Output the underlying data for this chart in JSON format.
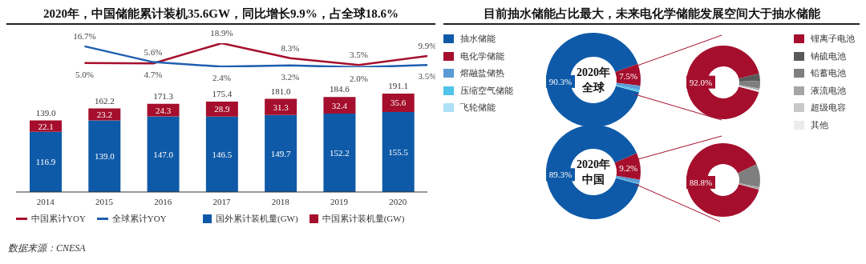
{
  "chart_data": [
    {
      "type": "line",
      "title": "2020年，中国储能累计装机35.6GW，同比增长9.9%，占全球18.6%",
      "categories": [
        null,
        null,
        null,
        null,
        null,
        null,
        null
      ],
      "tick_labels": false,
      "legend": "bottom",
      "series": [
        {
          "name": "中国累计YOY",
          "color": "#a50f2d",
          "values": [
            null,
            5.0,
            4.7,
            18.9,
            8.3,
            3.5,
            9.9
          ],
          "value_labels": [
            null,
            "5.0%",
            "4.7%",
            "18.9%",
            "8.3%",
            "3.5%",
            "9.9%"
          ]
        },
        {
          "name": "全球累计YOY",
          "color": "#1f5fb0",
          "values": [
            null,
            16.7,
            5.6,
            2.4,
            3.2,
            2.0,
            3.5
          ],
          "value_labels": [
            null,
            "16.7%",
            "5.6%",
            "2.4%",
            "3.2%",
            "2.0%",
            "3.5%"
          ]
        }
      ]
    },
    {
      "type": "bar",
      "categories": [
        "2014",
        "2015",
        "2016",
        "2017",
        "2018",
        "2019",
        "2020"
      ],
      "stacked": true,
      "legend": "bottom",
      "series": [
        {
          "name": "国外累计装机量(GW)",
          "color": "#0f5aa8",
          "values": [
            116.9,
            139.0,
            147.0,
            146.5,
            149.7,
            152.2,
            155.5
          ],
          "value_labels": [
            "116.9",
            "139.0",
            "147.0",
            "146.5",
            "149.7",
            "152.2",
            "155.5"
          ]
        },
        {
          "name": "中国累计装机量(GW)",
          "color": "#a50f2d",
          "values": [
            22.1,
            23.2,
            24.3,
            28.9,
            31.3,
            32.4,
            35.6
          ],
          "value_labels": [
            "22.1",
            "23.2",
            "24.3",
            "28.9",
            "31.3",
            "32.4",
            "35.6"
          ]
        }
      ],
      "totals": [
        "139.0",
        "162.2",
        "171.3",
        "175.4",
        "181.0",
        "184.6",
        "191.1"
      ],
      "annotations": [
        "数据来源：CNESA"
      ]
    },
    {
      "type": "donut",
      "title": "目前抽水储能占比最大，未来电化学储能发展空间大于抽水储能",
      "categories": [
        "抽水储能",
        "电化学储能",
        "熔融盐储热",
        "压缩空气储能",
        "飞轮储能"
      ],
      "values": [
        90.3,
        7.5,
        1.4,
        0.7,
        0.1
      ],
      "colors": [
        "#0f5aa8",
        "#a50f2d",
        "#5b9bd5",
        "#4fc3e8",
        "#aee0f7"
      ],
      "value_labels": [
        "90.3%",
        "7.5%",
        null,
        null,
        null
      ],
      "legend": "left",
      "annotations": [
        "2020年",
        "全球"
      ]
    },
    {
      "type": "donut",
      "categories": [
        "锂离子电池",
        "钠硫电池",
        "铅蓄电池",
        "液流电池",
        "超级电容",
        "其他"
      ],
      "values": [
        92.0,
        3.1,
        3.4,
        0.6,
        0.4,
        0.5
      ],
      "colors": [
        "#a50f2d",
        "#595959",
        "#7f7f7f",
        "#a6a6a6",
        "#c8c8c8",
        "#ececec"
      ],
      "value_labels": [
        "92.0%",
        null,
        null,
        null,
        null,
        null
      ],
      "legend": "right"
    },
    {
      "type": "donut",
      "categories": [
        null,
        null,
        null,
        null,
        null
      ],
      "values": [
        89.3,
        9.2,
        1.2,
        0.3,
        0
      ],
      "colors": [
        "#0f5aa8",
        "#a50f2d",
        "#5b9bd5",
        "#4fc3e8",
        "#aee0f7"
      ],
      "value_labels": [
        "89.3%",
        "9.2%",
        null,
        null,
        null
      ],
      "annotations": [
        "2020年",
        "中国"
      ]
    },
    {
      "type": "donut",
      "categories": [
        null,
        null,
        null,
        null,
        null,
        null
      ],
      "values": [
        88.8,
        0,
        10.2,
        0.9,
        0.1,
        0
      ],
      "colors": [
        "#a50f2d",
        "#595959",
        "#7f7f7f",
        "#a6a6a6",
        "#c8c8c8",
        "#ececec"
      ],
      "value_labels": [
        "88.8%",
        null,
        null,
        null,
        null,
        null
      ]
    }
  ]
}
